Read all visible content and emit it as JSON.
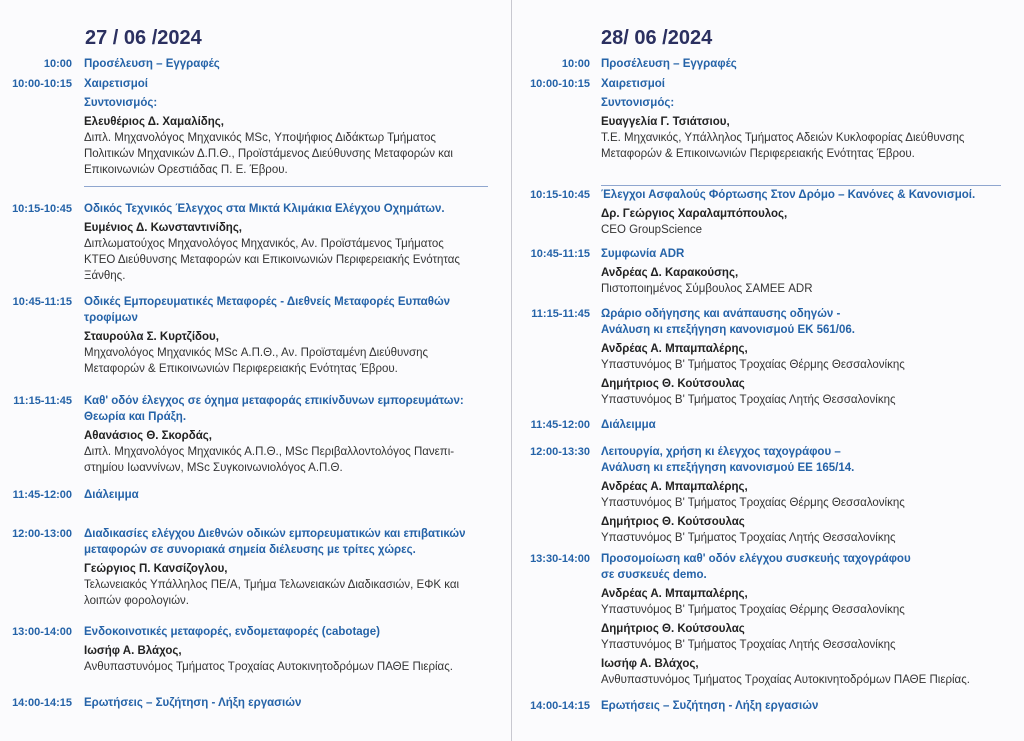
{
  "days": [
    {
      "date": "27 / 06 /2024",
      "items": [
        {
          "time": "10:00",
          "title": [
            "Προσέλευση – Εγγραφές"
          ]
        },
        {
          "time": "10:00-10:15",
          "title": [
            "Χαιρετισμοί"
          ],
          "subtitle": "Συντονισμός:",
          "speakers": [
            {
              "name": "Ελευθέριος Δ. Χαμαλίδης,",
              "desc": [
                "Διπλ. Μηχανολόγος Μηχανικός MSc, Υποψήφιος Διδάκτωρ Τμήματος",
                "Πολιτικών Μηχανικών Δ.Π.Θ., Προϊστάμενος Διεύθυνσης Μεταφορών και",
                "Επικοινωνιών Ορεστιάδας Π. Ε. Έβρου."
              ]
            }
          ]
        },
        {
          "time": "10:15-10:45",
          "title": [
            "Οδικός Τεχνικός Έλεγχος στα Μικτά Κλιμάκια Ελέγχου Οχημάτων."
          ],
          "speakers": [
            {
              "name": "Ευμένιος Δ. Κωνσταντινίδης,",
              "desc": [
                "Διπλωματούχος Μηχανολόγος Μηχανικός, Αν. Προϊστάμενος Τμήματος",
                "ΚΤΕΟ Διεύθυνσης Μεταφορών και Επικοινωνιών Περιφερειακής Ενότητας",
                "Ξάνθης."
              ]
            }
          ]
        },
        {
          "time": "10:45-11:15",
          "title": [
            "Οδικές Εμπορευματικές Μεταφορές - Διεθνείς Μεταφορές Ευπαθών",
            "τροφίμων"
          ],
          "speakers": [
            {
              "name": "Σταυρούλα Σ. Κυρτζίδου,",
              "desc": [
                "Μηχανολόγος Μηχανικός MSc Α.Π.Θ., Αν. Προϊσταμένη Διεύθυνσης",
                "Μεταφορών & Επικοινωνιών Περιφερειακής Ενότητας Έβρου."
              ]
            }
          ]
        },
        {
          "time": "11:15-11:45",
          "title": [
            "Καθ' οδόν έλεγχος σε όχημα μεταφοράς επικίνδυνων εμπορευμάτων:",
            "Θεωρία και Πράξη."
          ],
          "speakers": [
            {
              "name": "Αθανάσιος Θ. Σκορδάς,",
              "desc": [
                "Διπλ. Μηχανολόγος Μηχανικός Α.Π.Θ., MSc Περιβαλλοντολόγος Πανεπι-",
                "στημίου Ιωαννίνων, MSc Συγκοινωνιολόγος Α.Π.Θ."
              ]
            }
          ]
        },
        {
          "time": "11:45-12:00",
          "title": [
            "Διάλειμμα"
          ]
        },
        {
          "time": "12:00-13:00",
          "title": [
            "Διαδικασίες ελέγχου Διεθνών οδικών εμπορευματικών και επιβατικών",
            "μεταφορών σε συνοριακά σημεία διέλευσης με τρίτες χώρες."
          ],
          "speakers": [
            {
              "name": "Γεώργιος Π. Κανσίζογλου,",
              "desc": [
                "Τελωνειακός Υπάλληλος ΠΕ/Α, Τμήμα Τελωνειακών Διαδικασιών, ΕΦΚ και",
                "λοιπών φορολογιών."
              ]
            }
          ]
        },
        {
          "time": "13:00-14:00",
          "title": [
            "Ενδοκοινοτικές μεταφορές, ενδομεταφορές (cabotage)"
          ],
          "speakers": [
            {
              "name": "Ιωσήφ Α. Βλάχος,",
              "desc": [
                "Ανθυπαστυνόμος Τμήματος Τροχαίας Αυτοκινητοδρόμων ΠΑΘΕ Πιερίας."
              ]
            }
          ]
        },
        {
          "time": "14:00-14:15",
          "title": [
            "Ερωτήσεις – Συζήτηση - Λήξη εργασιών"
          ]
        }
      ]
    },
    {
      "date": "28/ 06 /2024",
      "items": [
        {
          "time": "10:00",
          "title": [
            "Προσέλευση – Εγγραφές"
          ]
        },
        {
          "time": "10:00-10:15",
          "title": [
            "Χαιρετισμοί"
          ],
          "subtitle": "Συντονισμός:",
          "speakers": [
            {
              "name": "Ευαγγελία Γ. Τσιάτσιου,",
              "desc": [
                "Τ.Ε. Μηχανικός, Υπάλληλος Τμήματος Αδειών Κυκλοφορίας Διεύθυνσης",
                "Μεταφορών & Επικοινωνιών Περιφερειακής Ενότητας Έβρου."
              ]
            }
          ]
        },
        {
          "time": "10:15-10:45",
          "title": [
            "Έλεγχοι Ασφαλούς Φόρτωσης Στον Δρόμο – Κανόνες & Κανονισμοί."
          ],
          "speakers": [
            {
              "name": "Δρ. Γεώργιος Χαραλαμπόπουλος,",
              "desc": [
                "CEO GroupScience"
              ]
            }
          ]
        },
        {
          "time": "10:45-11:15",
          "title": [
            "Συμφωνία ADR"
          ],
          "speakers": [
            {
              "name": "Ανδρέας Δ. Καρακούσης,",
              "desc": [
                "Πιστοποιημένος Σύμβουλος ΣΑΜΕΕ ADR"
              ]
            }
          ]
        },
        {
          "time": "11:15-11:45",
          "title": [
            "Ωράριο οδήγησης και ανάπαυσης οδηγών -",
            "Ανάλυση κι επεξήγηση κανονισμού ΕΚ 561/06."
          ],
          "speakers": [
            {
              "name": "Ανδρέας Α. Μπαμπαλέρης,",
              "desc": [
                "Υπαστυνόμος Β' Τμήματος Τροχαίας Θέρμης Θεσσαλονίκης"
              ]
            },
            {
              "name": "Δημήτριος Θ. Κούτσουλας",
              "desc": [
                "Υπαστυνόμος Β' Τμήματος Τροχαίας Λητής Θεσσαλονίκης"
              ]
            }
          ]
        },
        {
          "time": "11:45-12:00",
          "title": [
            "Διάλειμμα"
          ]
        },
        {
          "time": "12:00-13:30",
          "title": [
            "Λειτουργία, χρήση κι έλεγχος ταχογράφου –",
            "Ανάλυση κι επεξήγηση κανονισμού ΕΕ 165/14."
          ],
          "speakers": [
            {
              "name": "Ανδρέας Α. Μπαμπαλέρης,",
              "desc": [
                "Υπαστυνόμος Β' Τμήματος Τροχαίας Θέρμης Θεσσαλονίκης"
              ]
            },
            {
              "name": "Δημήτριος Θ. Κούτσουλας",
              "desc": [
                "Υπαστυνόμος Β' Τμήματος Τροχαίας Λητής Θεσσαλονίκης"
              ]
            }
          ]
        },
        {
          "time": "13:30-14:00",
          "title": [
            "Προσομοίωση καθ' οδόν ελέγχου συσκευής ταχογράφου",
            "σε συσκευές demo."
          ],
          "speakers": [
            {
              "name": "Ανδρέας Α. Μπαμπαλέρης,",
              "desc": [
                "Υπαστυνόμος Β' Τμήματος Τροχαίας Θέρμης Θεσσαλονίκης"
              ]
            },
            {
              "name": "Δημήτριος Θ. Κούτσουλας",
              "desc": [
                "Υπαστυνόμος Β' Τμήματος Τροχαίας Λητής Θεσσαλονίκης"
              ]
            },
            {
              "name": "Ιωσήφ Α. Βλάχος,",
              "desc": [
                "Ανθυπαστυνόμος Τμήματος Τροχαίας Αυτοκινητοδρόμων ΠΑΘΕ Πιερίας."
              ]
            }
          ]
        },
        {
          "time": "14:00-14:15",
          "title": [
            "Ερωτήσεις – Συζήτηση - Λήξη εργασιών"
          ]
        }
      ]
    }
  ]
}
